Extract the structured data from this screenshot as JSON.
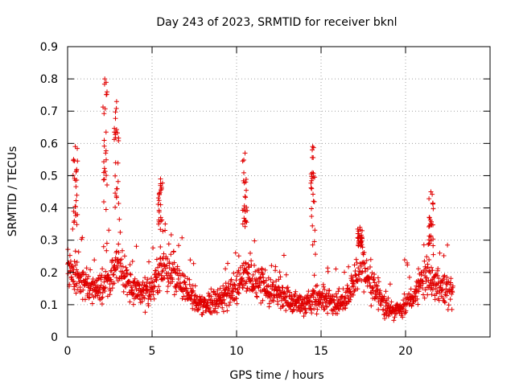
{
  "chart_data": {
    "type": "scatter",
    "title": "Day 243 of 2023, SRMTID for receiver bknl",
    "xlabel": "GPS time / hours",
    "ylabel": "SRMTID / TECUs",
    "xlim": [
      0,
      25
    ],
    "ylim": [
      0,
      0.9
    ],
    "x_ticks": [
      0,
      5,
      10,
      15,
      20
    ],
    "y_ticks": [
      0,
      0.1,
      0.2,
      0.3,
      0.4,
      0.5,
      0.6,
      0.7,
      0.8,
      0.9
    ],
    "grid": true,
    "marker": "+",
    "color": "#e00000",
    "x_range_data": [
      0.0,
      22.8
    ],
    "envelope": {
      "x": [
        0.0,
        0.4,
        1.0,
        1.5,
        2.2,
        3.0,
        3.5,
        4.0,
        4.5,
        5.0,
        5.5,
        6.0,
        6.5,
        7.0,
        7.5,
        8.0,
        8.5,
        9.0,
        9.5,
        10.0,
        10.5,
        11.0,
        11.5,
        12.0,
        12.5,
        13.0,
        13.5,
        14.0,
        14.5,
        15.0,
        15.5,
        16.0,
        16.5,
        17.0,
        17.3,
        17.8,
        18.3,
        18.8,
        19.3,
        19.8,
        20.3,
        20.8,
        21.3,
        21.8,
        22.3,
        22.8
      ],
      "median": [
        0.22,
        0.2,
        0.16,
        0.14,
        0.16,
        0.22,
        0.18,
        0.15,
        0.14,
        0.15,
        0.2,
        0.22,
        0.18,
        0.14,
        0.11,
        0.1,
        0.1,
        0.12,
        0.13,
        0.16,
        0.2,
        0.18,
        0.17,
        0.15,
        0.14,
        0.12,
        0.1,
        0.1,
        0.12,
        0.12,
        0.11,
        0.1,
        0.12,
        0.17,
        0.24,
        0.18,
        0.14,
        0.09,
        0.08,
        0.09,
        0.12,
        0.16,
        0.2,
        0.17,
        0.15,
        0.13
      ]
    },
    "peaks": [
      {
        "x": 0.45,
        "y": 0.59
      },
      {
        "x": 2.2,
        "y": 0.8
      },
      {
        "x": 2.9,
        "y": 0.73
      },
      {
        "x": 5.5,
        "y": 0.49
      },
      {
        "x": 10.5,
        "y": 0.57
      },
      {
        "x": 14.5,
        "y": 0.59
      },
      {
        "x": 17.3,
        "y": 0.34
      },
      {
        "x": 21.5,
        "y": 0.45
      }
    ]
  }
}
